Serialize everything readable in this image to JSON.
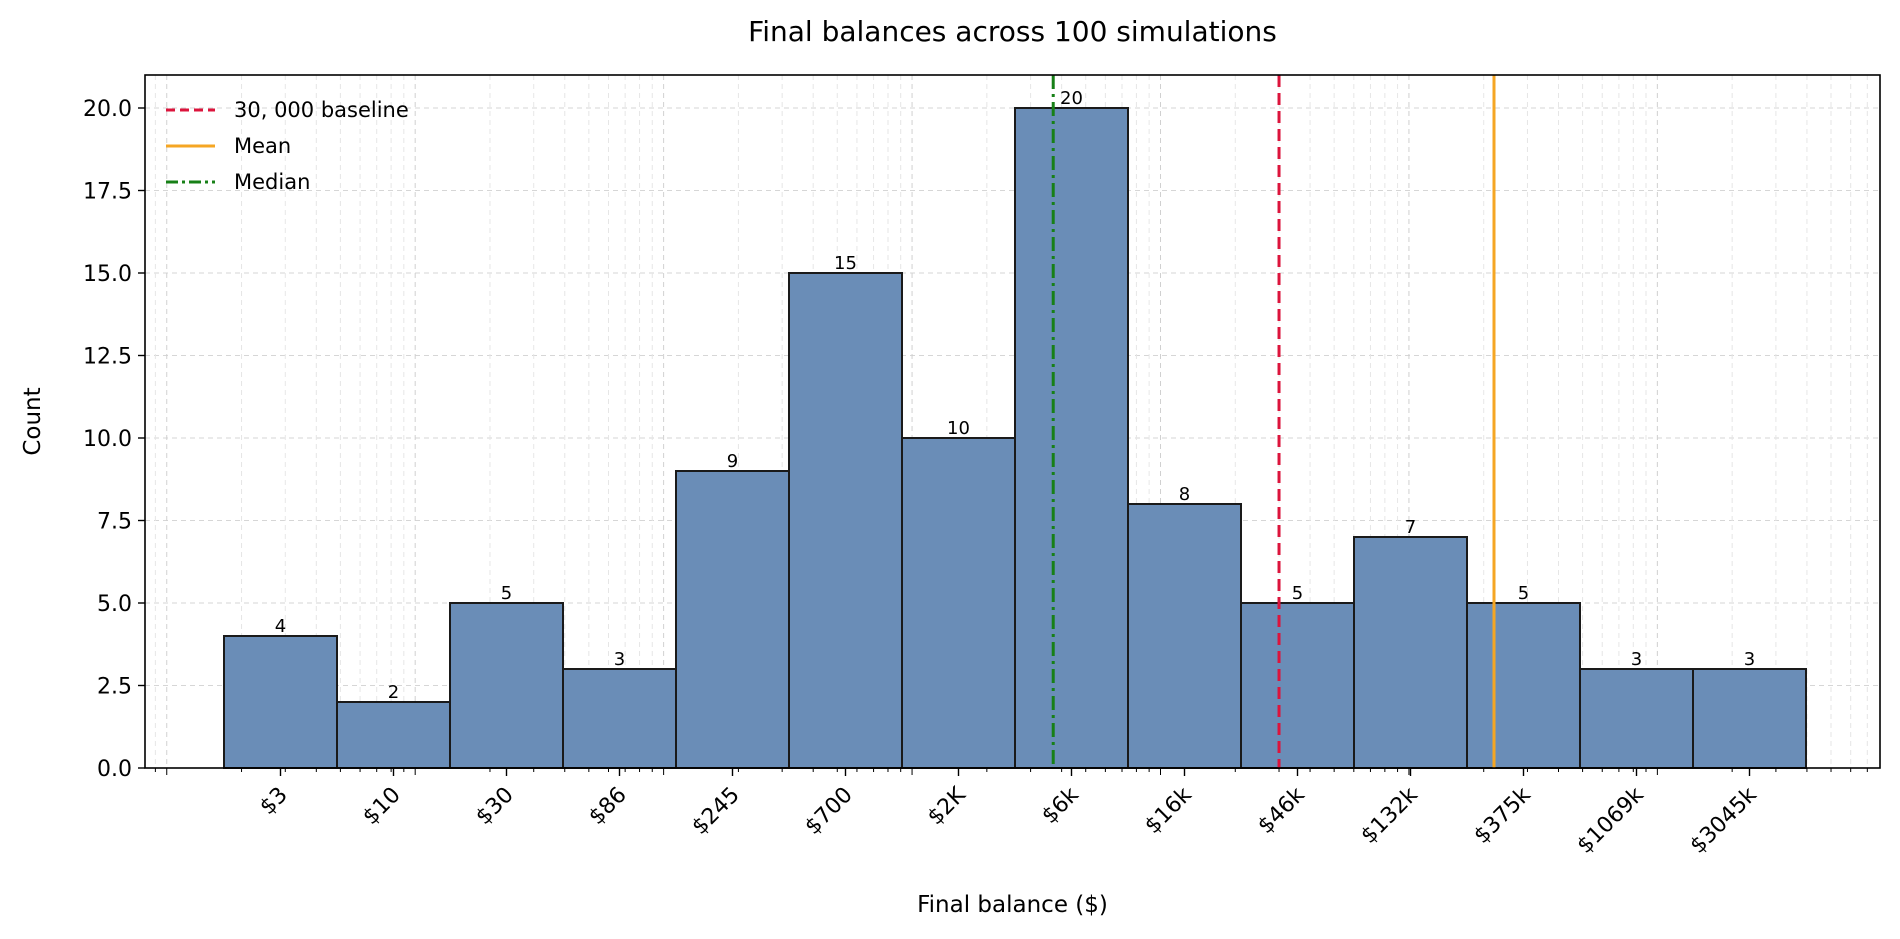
{
  "chart_data": {
    "type": "bar",
    "title": "Final balances across 100 simulations",
    "xlabel": "Final balance ($)",
    "ylabel": "Count",
    "x_scale": "log",
    "ylim": [
      0,
      21
    ],
    "y_ticks": [
      "0.0",
      "2.5",
      "5.0",
      "7.5",
      "10.0",
      "12.5",
      "15.0",
      "17.5",
      "20.0"
    ],
    "y_tick_values": [
      0,
      2.5,
      5,
      7.5,
      10,
      12.5,
      15,
      17.5,
      20
    ],
    "categories": [
      "$3",
      "$10",
      "$30",
      "$86",
      "$245",
      "$700",
      "$2K",
      "$6k",
      "$16k",
      "$46k",
      "$132k",
      "$375k",
      "$1069k",
      "$3045k"
    ],
    "values": [
      4,
      2,
      5,
      3,
      9,
      15,
      10,
      20,
      8,
      5,
      7,
      5,
      3,
      3
    ],
    "bar_color": "#6a8db7",
    "bar_edge_color": "#1a1a1a",
    "grid": true,
    "legend": {
      "placement": "top-left",
      "entries": [
        {
          "label": "30, 000 baseline",
          "color": "#dc143c",
          "style": "dashed"
        },
        {
          "label": "Mean",
          "color": "#f5a623",
          "style": "solid"
        },
        {
          "label": "Median",
          "color": "#178017",
          "style": "dashdot"
        }
      ]
    },
    "reference_lines": {
      "baseline": 30000,
      "mean": 220000,
      "median": 3700
    }
  }
}
